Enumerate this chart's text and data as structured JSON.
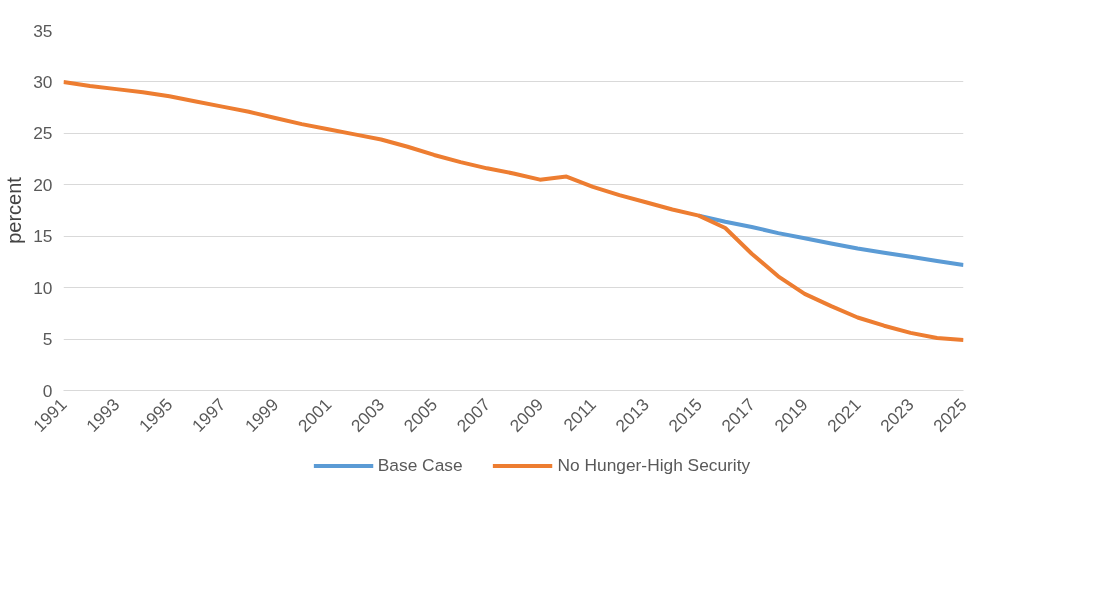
{
  "chart_data": {
    "type": "line",
    "ylabel": "percent",
    "x": [
      1991,
      1992,
      1993,
      1994,
      1995,
      1996,
      1997,
      1998,
      1999,
      2000,
      2001,
      2002,
      2003,
      2004,
      2005,
      2006,
      2007,
      2008,
      2009,
      2010,
      2011,
      2012,
      2013,
      2014,
      2015,
      2016,
      2017,
      2018,
      2019,
      2020,
      2021,
      2022,
      2023,
      2024,
      2025
    ],
    "series": [
      {
        "name": "Base Case",
        "color": "#5b9bd5",
        "values": [
          null,
          null,
          null,
          null,
          null,
          null,
          null,
          null,
          null,
          null,
          null,
          null,
          null,
          null,
          null,
          null,
          null,
          null,
          null,
          null,
          null,
          null,
          null,
          null,
          17.0,
          16.4,
          15.9,
          15.3,
          14.8,
          14.3,
          13.8,
          13.4,
          13.0,
          12.6,
          12.2
        ]
      },
      {
        "name": "No Hunger-High Security",
        "color": "#ed7d31",
        "values": [
          30.0,
          29.6,
          29.3,
          29.0,
          28.6,
          28.1,
          27.6,
          27.1,
          26.5,
          25.9,
          25.4,
          24.9,
          24.4,
          23.7,
          22.9,
          22.2,
          21.6,
          21.1,
          20.5,
          20.8,
          19.8,
          19.0,
          18.3,
          17.6,
          17.0,
          15.8,
          13.3,
          11.1,
          9.4,
          8.2,
          7.1,
          6.3,
          5.6,
          5.1,
          4.9
        ]
      }
    ],
    "xlim": [
      1991,
      2025
    ],
    "xticks": [
      1991,
      1993,
      1995,
      1997,
      1999,
      2001,
      2003,
      2005,
      2007,
      2009,
      2011,
      2013,
      2015,
      2017,
      2019,
      2021,
      2023,
      2025
    ],
    "ylim": [
      0,
      35
    ],
    "yticks": [
      0,
      5,
      10,
      15,
      20,
      25,
      30,
      35
    ],
    "grid": "y",
    "legend": "bottom",
    "marker": "none",
    "line_style": "solid"
  }
}
